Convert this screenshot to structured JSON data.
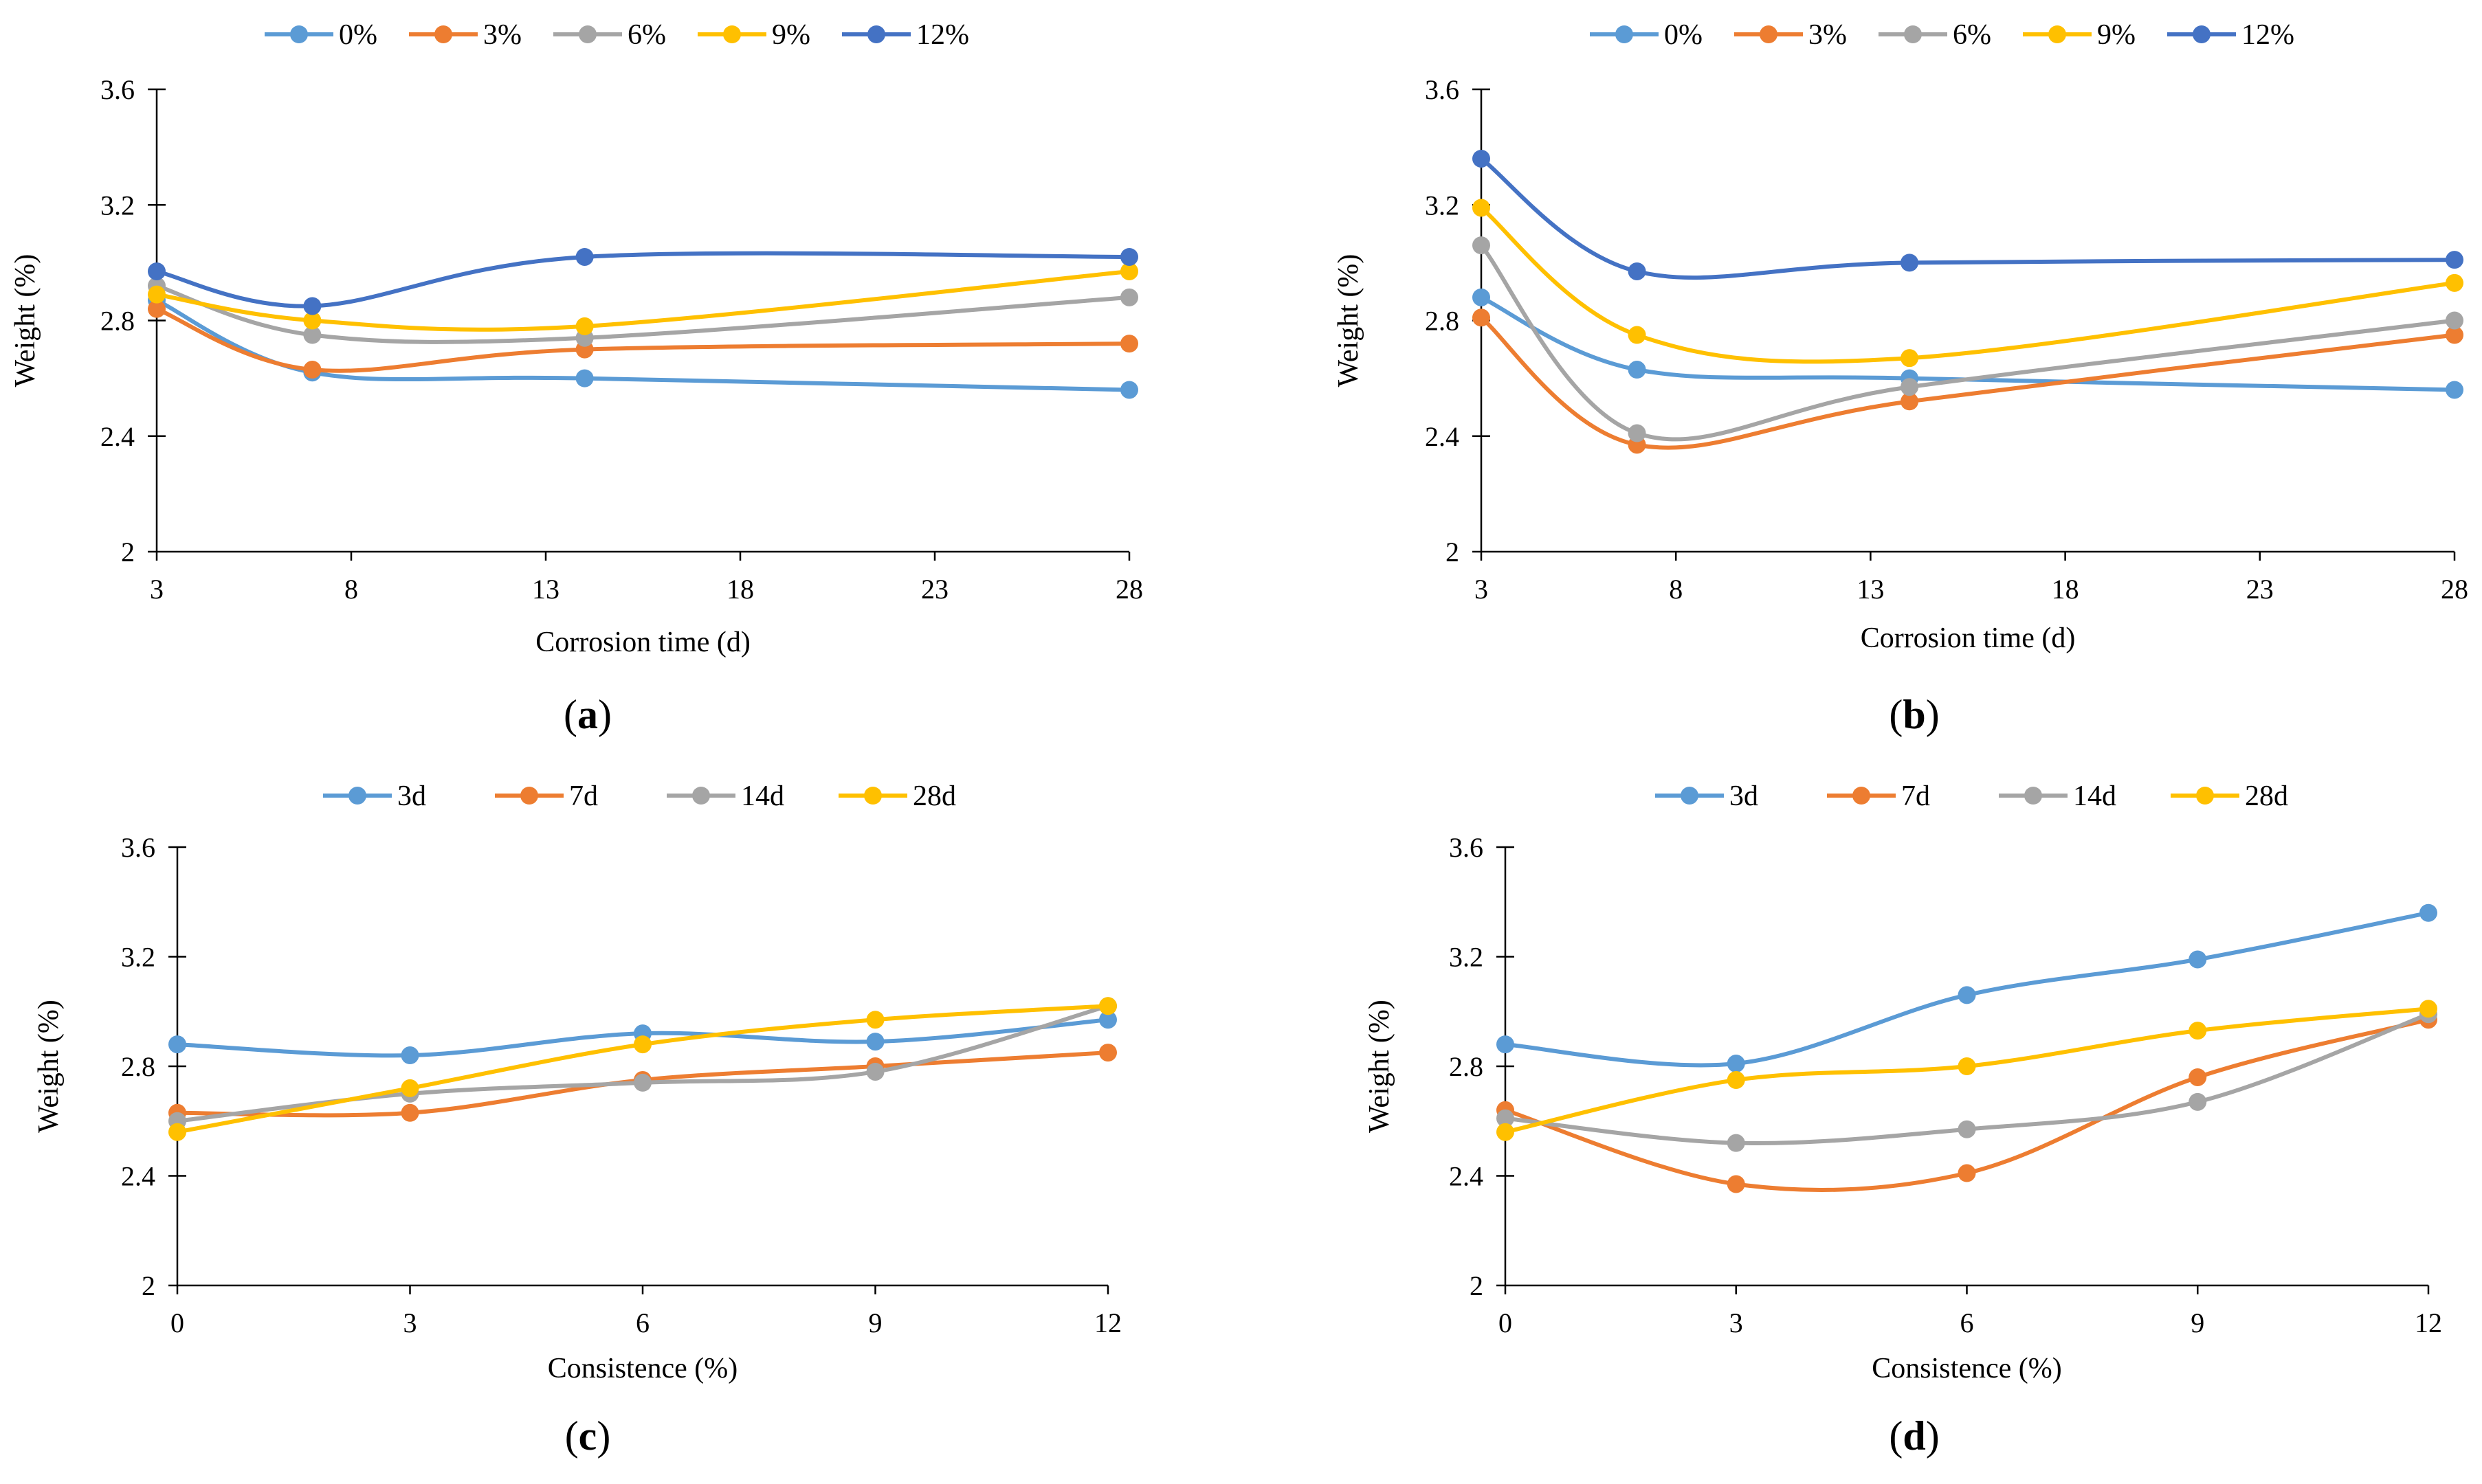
{
  "charts": [
    {
      "id": "a",
      "chart_data": {
        "type": "line",
        "panel_label": "(a)",
        "panel_letter": "a",
        "xlabel": "Corrosion time (d)",
        "ylabel": "Weight (%)",
        "x_ticks": [
          "3",
          "8",
          "13",
          "18",
          "23",
          "28"
        ],
        "y_ticks": [
          "2",
          "2.4",
          "2.8",
          "3.2",
          "3.6"
        ],
        "xlim": [
          3,
          28
        ],
        "ylim": [
          2,
          3.6
        ],
        "x": [
          3,
          7,
          14,
          28
        ],
        "series": [
          {
            "name": "0%",
            "color": "#5b9bd5",
            "values": [
              2.87,
              2.62,
              2.6,
              2.56
            ]
          },
          {
            "name": "3%",
            "color": "#ed7d31",
            "values": [
              2.84,
              2.63,
              2.7,
              2.72
            ]
          },
          {
            "name": "6%",
            "color": "#a5a5a5",
            "values": [
              2.92,
              2.75,
              2.74,
              2.88
            ]
          },
          {
            "name": "9%",
            "color": "#ffc000",
            "values": [
              2.89,
              2.8,
              2.78,
              2.97
            ]
          },
          {
            "name": "12%",
            "color": "#4472c4",
            "values": [
              2.97,
              2.85,
              3.02,
              3.02
            ]
          }
        ]
      }
    },
    {
      "id": "b",
      "chart_data": {
        "type": "line",
        "panel_label": "(b)",
        "panel_letter": "b",
        "xlabel": "Corrosion time (d)",
        "ylabel": "Weight (%)",
        "x_ticks": [
          "3",
          "8",
          "13",
          "18",
          "23",
          "28"
        ],
        "y_ticks": [
          "2",
          "2.4",
          "2.8",
          "3.2",
          "3.6"
        ],
        "xlim": [
          3,
          28
        ],
        "ylim": [
          2,
          3.6
        ],
        "x": [
          3,
          7,
          14,
          28
        ],
        "series": [
          {
            "name": "0%",
            "color": "#5b9bd5",
            "values": [
              2.88,
              2.63,
              2.6,
              2.56
            ]
          },
          {
            "name": "3%",
            "color": "#ed7d31",
            "values": [
              2.81,
              2.37,
              2.52,
              2.75
            ]
          },
          {
            "name": "6%",
            "color": "#a5a5a5",
            "values": [
              3.06,
              2.41,
              2.57,
              2.8
            ]
          },
          {
            "name": "9%",
            "color": "#ffc000",
            "values": [
              3.19,
              2.75,
              2.67,
              2.93
            ]
          },
          {
            "name": "12%",
            "color": "#4472c4",
            "values": [
              3.36,
              2.97,
              3.0,
              3.01
            ]
          }
        ]
      }
    },
    {
      "id": "c",
      "chart_data": {
        "type": "line",
        "panel_label": "(c)",
        "panel_letter": "c",
        "xlabel": "Consistence (%)",
        "ylabel": "Weight (%)",
        "x_ticks": [
          "0",
          "3",
          "6",
          "9",
          "12"
        ],
        "y_ticks": [
          "2",
          "2.4",
          "2.8",
          "3.2",
          "3.6"
        ],
        "xlim": [
          0,
          12
        ],
        "ylim": [
          2,
          3.6
        ],
        "x": [
          0,
          3,
          6,
          9,
          12
        ],
        "series": [
          {
            "name": "3d",
            "color": "#5b9bd5",
            "values": [
              2.88,
              2.84,
              2.92,
              2.89,
              2.97
            ]
          },
          {
            "name": "7d",
            "color": "#ed7d31",
            "values": [
              2.63,
              2.63,
              2.75,
              2.8,
              2.85
            ]
          },
          {
            "name": "14d",
            "color": "#a5a5a5",
            "values": [
              2.6,
              2.7,
              2.74,
              2.78,
              3.02
            ]
          },
          {
            "name": "28d",
            "color": "#ffc000",
            "values": [
              2.56,
              2.72,
              2.88,
              2.97,
              3.02
            ]
          }
        ]
      }
    },
    {
      "id": "d",
      "chart_data": {
        "type": "line",
        "panel_label": "(d)",
        "panel_letter": "d",
        "xlabel": "Consistence (%)",
        "ylabel": "Weight (%)",
        "x_ticks": [
          "0",
          "3",
          "6",
          "9",
          "12"
        ],
        "y_ticks": [
          "2",
          "2.4",
          "2.8",
          "3.2",
          "3.6"
        ],
        "xlim": [
          0,
          12
        ],
        "ylim": [
          2,
          3.6
        ],
        "x": [
          0,
          3,
          6,
          9,
          12
        ],
        "series": [
          {
            "name": "3d",
            "color": "#5b9bd5",
            "values": [
              2.88,
              2.81,
              3.06,
              3.19,
              3.36
            ]
          },
          {
            "name": "7d",
            "color": "#ed7d31",
            "values": [
              2.64,
              2.37,
              2.41,
              2.76,
              2.97
            ]
          },
          {
            "name": "14d",
            "color": "#a5a5a5",
            "values": [
              2.61,
              2.52,
              2.57,
              2.67,
              2.99
            ]
          },
          {
            "name": "28d",
            "color": "#ffc000",
            "values": [
              2.56,
              2.75,
              2.8,
              2.93,
              3.01
            ]
          }
        ]
      }
    }
  ]
}
